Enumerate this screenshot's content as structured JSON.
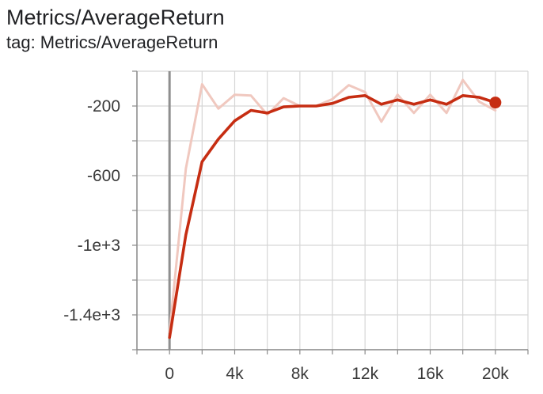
{
  "header": {
    "title": "Metrics/AverageReturn",
    "subtitle": "tag: Metrics/AverageReturn"
  },
  "colors": {
    "smoothed_line": "#c62d12",
    "raw_line": "#f0c8bf",
    "grid": "#d6d6d6",
    "axis": "#8a8a8a",
    "zero_line": "#8f8f8f",
    "tick_text": "#3a3a3a"
  },
  "chart_data": {
    "type": "line",
    "title": "Metrics/AverageReturn",
    "xlabel": "",
    "ylabel": "",
    "xlim": [
      -2000,
      22000
    ],
    "ylim": [
      -1600,
      0
    ],
    "grid": true,
    "x_ticks": [
      {
        "value": 0,
        "label": "0"
      },
      {
        "value": 4000,
        "label": "4k"
      },
      {
        "value": 8000,
        "label": "8k"
      },
      {
        "value": 12000,
        "label": "12k"
      },
      {
        "value": 16000,
        "label": "16k"
      },
      {
        "value": 20000,
        "label": "20k"
      }
    ],
    "y_ticks": [
      {
        "value": -200,
        "label": "-200"
      },
      {
        "value": -600,
        "label": "-600"
      },
      {
        "value": -1000,
        "label": "-1e+3"
      },
      {
        "value": -1400,
        "label": "-1.4e+3"
      }
    ],
    "series": [
      {
        "style": "raw",
        "x": [
          0,
          1000,
          2000,
          3000,
          4000,
          5000,
          6000,
          7000,
          8000,
          9000,
          10000,
          11000,
          12000,
          13000,
          14000,
          15000,
          16000,
          17000,
          18000,
          19000,
          20000
        ],
        "y": [
          -1500,
          -560,
          -75,
          -215,
          -135,
          -140,
          -250,
          -155,
          -200,
          -200,
          -160,
          -80,
          -120,
          -290,
          -135,
          -240,
          -135,
          -240,
          -50,
          -175,
          -225
        ]
      },
      {
        "style": "smoothed",
        "x": [
          0,
          1000,
          2000,
          3000,
          4000,
          5000,
          6000,
          7000,
          8000,
          9000,
          10000,
          11000,
          12000,
          13000,
          14000,
          15000,
          16000,
          17000,
          18000,
          19000,
          20000
        ],
        "y": [
          -1530,
          -940,
          -520,
          -390,
          -285,
          -225,
          -240,
          -205,
          -200,
          -200,
          -185,
          -150,
          -140,
          -190,
          -165,
          -190,
          -165,
          -190,
          -140,
          -150,
          -180
        ]
      }
    ]
  }
}
